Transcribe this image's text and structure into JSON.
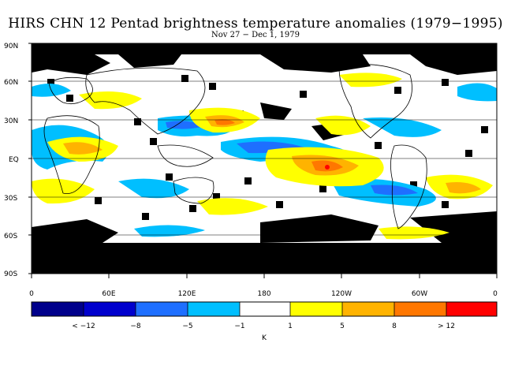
{
  "title": "HIRS CHN 12 Pentad brightness temperature anomalies (1979−1995)",
  "subtitle": "Nov 27 − Dec 1, 1979",
  "map": {
    "lat_ticks": [
      "90N",
      "60N",
      "30N",
      "EQ",
      "30S",
      "60S",
      "90S"
    ],
    "lon_ticks": [
      "0",
      "60E",
      "120E",
      "180",
      "120W",
      "60W",
      "0"
    ],
    "colors": {
      "no_data": "#000000",
      "land_outline": "#000000"
    }
  },
  "colorbar": {
    "unit": "K",
    "labels": [
      "< −12",
      "−8",
      "−5",
      "−1",
      "1",
      "5",
      "8",
      "> 12"
    ],
    "colors": [
      "#00008b",
      "#0000cd",
      "#1e6fff",
      "#00bfff",
      "#ffffff",
      "#ffff00",
      "#ffb300",
      "#ff7700",
      "#ff0000"
    ]
  }
}
